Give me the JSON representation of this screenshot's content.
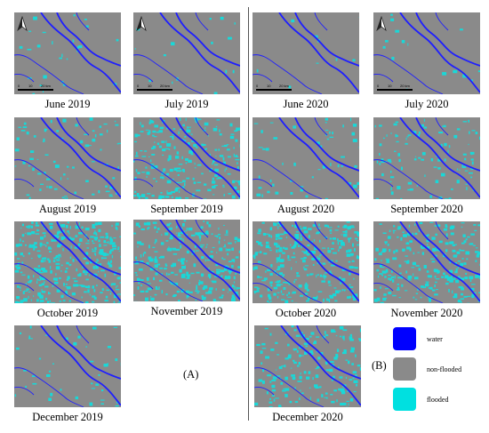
{
  "groups": {
    "left": "(A)",
    "right": "(B)"
  },
  "scalebar": {
    "t0": "0",
    "t1": "10",
    "t2": "20 km"
  },
  "legend": [
    {
      "label": "water",
      "color": "#0000ff"
    },
    {
      "label": "non-flooded",
      "color": "#8a8a8a"
    },
    {
      "label": "flooded",
      "color": "#00e0e0"
    }
  ],
  "colors": {
    "background": "#8a8a8a",
    "water": "#1e1eff",
    "flooded": "#19d8d8"
  },
  "panels": [
    {
      "caption": "June 2019",
      "flood_level": 0.05,
      "north_arrow": true,
      "scale_bar": true
    },
    {
      "caption": "July 2019",
      "flood_level": 0.03,
      "north_arrow": true,
      "scale_bar": true
    },
    {
      "caption": "June 2020",
      "flood_level": 0.02,
      "north_arrow": false,
      "scale_bar": true
    },
    {
      "caption": "July 2020",
      "flood_level": 0.03,
      "north_arrow": true,
      "scale_bar": true
    },
    {
      "caption": "August 2019",
      "flood_level": 0.15,
      "north_arrow": false,
      "scale_bar": false
    },
    {
      "caption": "September 2019",
      "flood_level": 0.45,
      "north_arrow": false,
      "scale_bar": false
    },
    {
      "caption": "August 2020",
      "flood_level": 0.1,
      "north_arrow": false,
      "scale_bar": false
    },
    {
      "caption": "September 2020",
      "flood_level": 0.2,
      "north_arrow": false,
      "scale_bar": false
    },
    {
      "caption": "October 2019",
      "flood_level": 0.7,
      "north_arrow": false,
      "scale_bar": false
    },
    {
      "caption": "November 2019",
      "flood_level": 0.55,
      "north_arrow": false,
      "scale_bar": false
    },
    {
      "caption": "October 2020",
      "flood_level": 0.6,
      "north_arrow": false,
      "scale_bar": false
    },
    {
      "caption": "November 2020",
      "flood_level": 0.5,
      "north_arrow": false,
      "scale_bar": false
    },
    {
      "caption": "December 2019",
      "flood_level": 0.08,
      "north_arrow": false,
      "scale_bar": false
    },
    {
      "caption": "December 2020",
      "flood_level": 0.35,
      "north_arrow": false,
      "scale_bar": false
    }
  ]
}
